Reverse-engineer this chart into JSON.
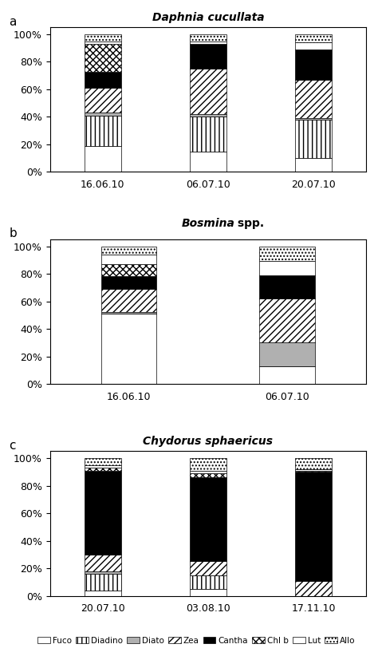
{
  "panels": [
    {
      "label": "a",
      "title_plain": "",
      "title_italic": "Daphnia cucullata",
      "dates": [
        "16.06.10",
        "06.07.10",
        "20.07.10"
      ],
      "data": {
        "Fuco": [
          0.19,
          0.15,
          0.1
        ],
        "Diadino": [
          0.22,
          0.25,
          0.28
        ],
        "Diato": [
          0.02,
          0.02,
          0.01
        ],
        "Zea": [
          0.18,
          0.33,
          0.28
        ],
        "Cantha": [
          0.12,
          0.18,
          0.22
        ],
        "Chl b": [
          0.2,
          0.0,
          0.0
        ],
        "Lut": [
          0.02,
          0.02,
          0.05
        ],
        "Allo": [
          0.05,
          0.05,
          0.06
        ]
      }
    },
    {
      "label": "b",
      "title_plain": " spp.",
      "title_italic": "Bosmina",
      "dates": [
        "16.06.10",
        "06.07.10"
      ],
      "data": {
        "Fuco": [
          0.51,
          0.13
        ],
        "Diadino": [
          0.0,
          0.0
        ],
        "Diato": [
          0.01,
          0.17
        ],
        "Zea": [
          0.17,
          0.32
        ],
        "Cantha": [
          0.09,
          0.17
        ],
        "Chl b": [
          0.09,
          0.0
        ],
        "Lut": [
          0.07,
          0.1
        ],
        "Allo": [
          0.06,
          0.11
        ]
      }
    },
    {
      "label": "c",
      "title_plain": "",
      "title_italic": "Chydorus sphaericus",
      "dates": [
        "20.07.10",
        "03.08.10",
        "17.11.10"
      ],
      "data": {
        "Fuco": [
          0.04,
          0.05,
          0.0
        ],
        "Diadino": [
          0.12,
          0.1,
          0.0
        ],
        "Diato": [
          0.02,
          0.0,
          0.0
        ],
        "Zea": [
          0.12,
          0.1,
          0.11
        ],
        "Cantha": [
          0.61,
          0.61,
          0.79
        ],
        "Chl b": [
          0.02,
          0.03,
          0.01
        ],
        "Lut": [
          0.02,
          0.02,
          0.01
        ],
        "Allo": [
          0.05,
          0.09,
          0.08
        ]
      }
    }
  ],
  "pigments": [
    "Fuco",
    "Diadino",
    "Diato",
    "Zea",
    "Cantha",
    "Chl b",
    "Lut",
    "Allo"
  ],
  "legend_labels": [
    "Fuco",
    "Diadino",
    "Diato",
    "Zea",
    "Cantha",
    "Chl b",
    "Lut",
    "Allo"
  ],
  "bar_width": 0.35,
  "background_color": "#ffffff"
}
